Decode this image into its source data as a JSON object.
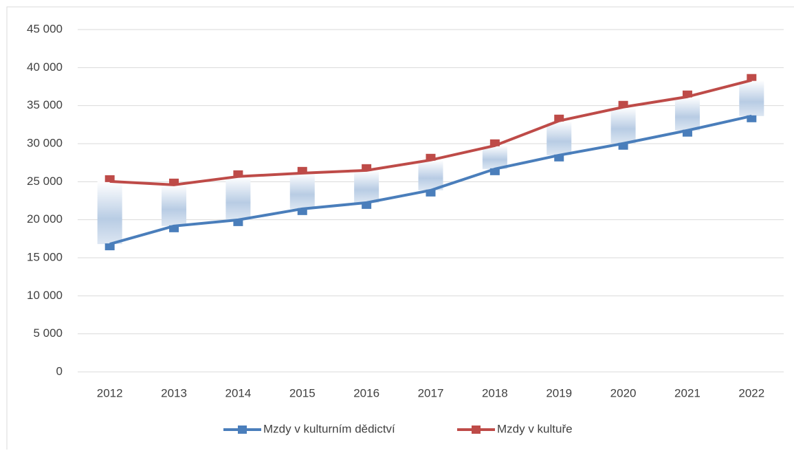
{
  "chart_data": {
    "type": "line",
    "categories": [
      "2012",
      "2013",
      "2014",
      "2015",
      "2016",
      "2017",
      "2018",
      "2019",
      "2020",
      "2021",
      "2022"
    ],
    "series": [
      {
        "name": "Mzdy v kulturním dědictví",
        "color": "#4a7ebb",
        "values": [
          16800,
          19170,
          19980,
          21430,
          22240,
          23870,
          26670,
          28480,
          30020,
          31740,
          33630
        ]
      },
      {
        "name": "Mzdy v kultuře",
        "color": "#be4b48",
        "values": [
          25040,
          24590,
          25680,
          26130,
          26490,
          27850,
          29750,
          33000,
          34810,
          36170,
          38340
        ]
      }
    ],
    "ylim": [
      0,
      45000
    ],
    "yticks": [
      {
        "value": 0,
        "label": "0"
      },
      {
        "value": 5000,
        "label": "5 000"
      },
      {
        "value": 10000,
        "label": "10 000"
      },
      {
        "value": 15000,
        "label": "15 000"
      },
      {
        "value": 20000,
        "label": "20 000"
      },
      {
        "value": 25000,
        "label": "25 000"
      },
      {
        "value": 30000,
        "label": "30 000"
      },
      {
        "value": 35000,
        "label": "35 000"
      },
      {
        "value": 40000,
        "label": "40 000"
      },
      {
        "value": 45000,
        "label": "45 000"
      }
    ],
    "grid": true,
    "up_down_bars": true,
    "legend": "bottom"
  }
}
